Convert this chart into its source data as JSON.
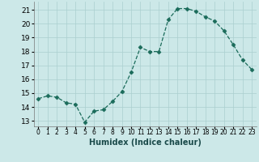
{
  "x": [
    0,
    1,
    2,
    3,
    4,
    5,
    6,
    7,
    8,
    9,
    10,
    11,
    12,
    13,
    14,
    15,
    16,
    17,
    18,
    19,
    20,
    21,
    22,
    23
  ],
  "y": [
    14.6,
    14.8,
    14.7,
    14.3,
    14.2,
    12.9,
    13.7,
    13.8,
    14.4,
    15.1,
    16.5,
    18.3,
    18.0,
    18.0,
    20.3,
    21.1,
    21.1,
    20.9,
    20.5,
    20.2,
    19.5,
    18.5,
    17.4,
    16.7
  ],
  "xlabel": "Humidex (Indice chaleur)",
  "xlim": [
    -0.5,
    23.5
  ],
  "ylim": [
    12.6,
    21.6
  ],
  "yticks": [
    13,
    14,
    15,
    16,
    17,
    18,
    19,
    20,
    21
  ],
  "xtick_labels": [
    "0",
    "1",
    "2",
    "3",
    "4",
    "5",
    "6",
    "7",
    "8",
    "9",
    "10",
    "11",
    "12",
    "13",
    "14",
    "15",
    "16",
    "17",
    "18",
    "19",
    "20",
    "21",
    "22",
    "23"
  ],
  "line_color": "#1a6b5a",
  "marker_color": "#1a6b5a",
  "bg_color": "#cce8e8",
  "grid_color": "#aacfcf",
  "fig_bg": "#cce8e8"
}
